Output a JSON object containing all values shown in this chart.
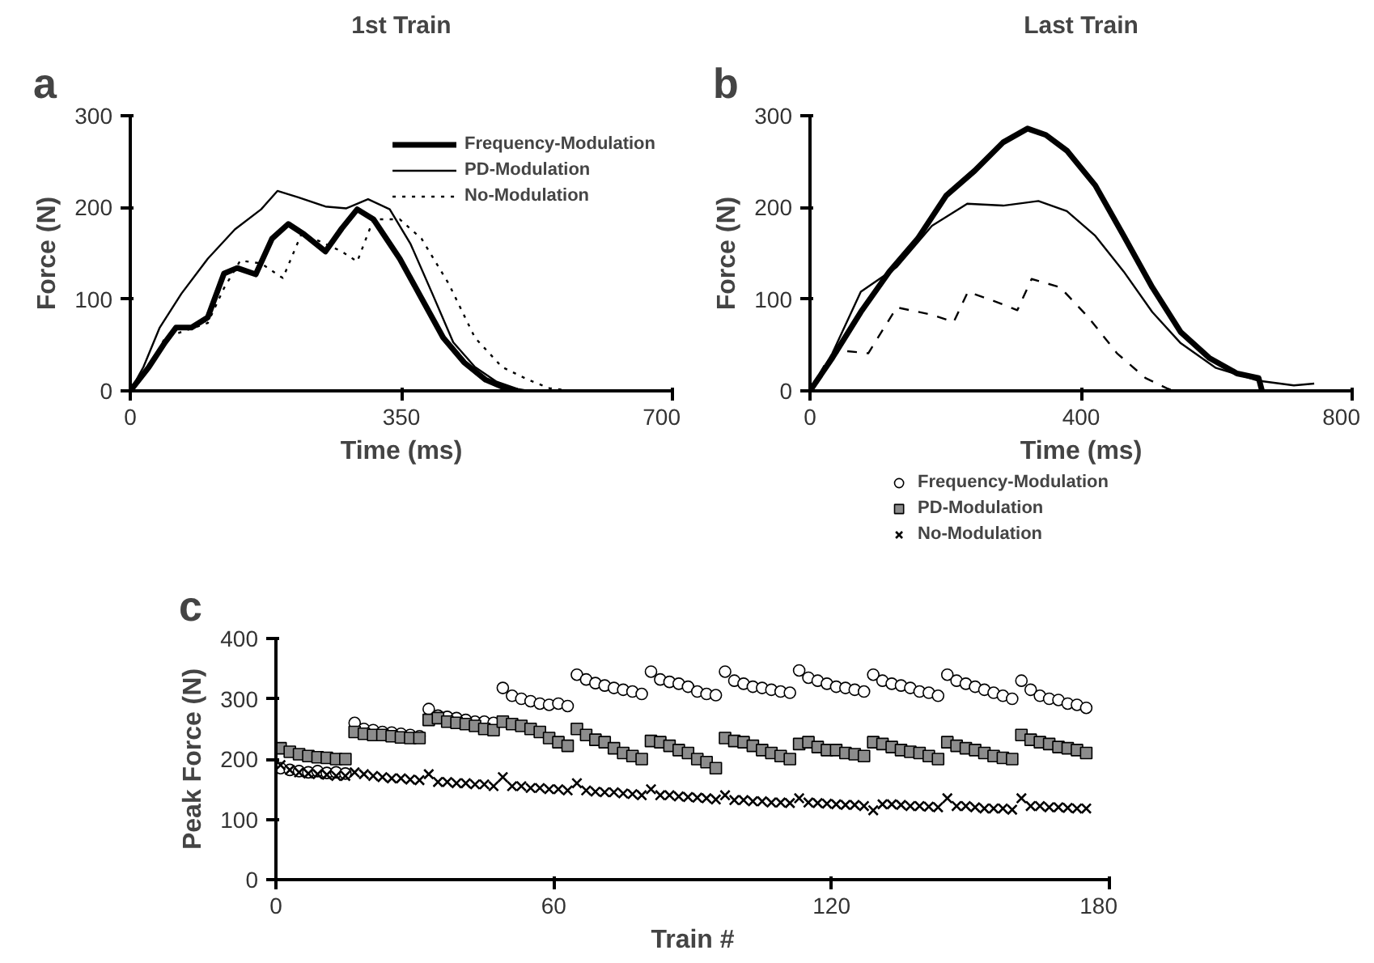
{
  "chart_data": [
    {
      "type": "line",
      "title": "1st Train",
      "xlabel": "Time (ms)",
      "ylabel": "Force (N)",
      "annotations": [
        "a"
      ],
      "xlim": [
        0,
        700
      ],
      "ylim": [
        0,
        300
      ],
      "xticks": [
        0,
        350,
        700
      ],
      "yticks": [
        0,
        100,
        200,
        300
      ],
      "grid": false,
      "legend": "top right",
      "series": [
        {
          "name": "Frequency-Modulation",
          "color": "#000000",
          "line_style": "solid",
          "x": [
            0,
            24,
            45,
            59,
            79,
            100,
            121,
            138,
            162,
            183,
            204,
            224,
            252,
            273,
            293,
            314,
            348,
            376,
            404,
            431,
            459,
            487,
            500
          ],
          "values": [
            0,
            26,
            53,
            69,
            69,
            80,
            128,
            134,
            127,
            166,
            182,
            171,
            152,
            177,
            198,
            187,
            144,
            101,
            58,
            31,
            12,
            2,
            0
          ]
        },
        {
          "name": "PD-Modulation",
          "color": "#000000",
          "line_style": "solid",
          "x": [
            0,
            17,
            38,
            66,
            100,
            135,
            169,
            190,
            217,
            252,
            279,
            307,
            335,
            362,
            390,
            417,
            445,
            473,
            500,
            514
          ],
          "values": [
            0,
            26,
            69,
            106,
            144,
            176,
            198,
            218,
            211,
            201,
            199,
            209,
            198,
            160,
            106,
            53,
            26,
            10,
            2,
            0
          ]
        },
        {
          "name": "No-Modulation",
          "color": "#000000",
          "line_style": "dotted",
          "x": [
            0,
            24,
            45,
            72,
            100,
            121,
            142,
            169,
            197,
            221,
            245,
            273,
            293,
            314,
            348,
            376,
            411,
            445,
            480,
            514,
            541,
            569
          ],
          "values": [
            0,
            26,
            58,
            66,
            74,
            112,
            142,
            139,
            123,
            171,
            163,
            152,
            141,
            187,
            187,
            166,
            117,
            58,
            26,
            12,
            3,
            0
          ]
        }
      ]
    },
    {
      "type": "line",
      "title": "Last Train",
      "xlabel": "Time (ms)",
      "ylabel": "Force (N)",
      "annotations": [
        "b"
      ],
      "xlim": [
        0,
        800
      ],
      "ylim": [
        0,
        300
      ],
      "xticks": [
        0,
        400,
        800
      ],
      "yticks": [
        0,
        100,
        200,
        300
      ],
      "grid": false,
      "series": [
        {
          "color": "#000000",
          "line_style": "solid",
          "x": [
            0,
            33,
            75,
            117,
            159,
            201,
            243,
            285,
            321,
            348,
            379,
            421,
            463,
            505,
            547,
            589,
            630,
            662,
            667
          ],
          "values": [
            0,
            36,
            86,
            130,
            166,
            213,
            240,
            271,
            286,
            279,
            262,
            224,
            169,
            113,
            64,
            36,
            19,
            14,
            0
          ]
        },
        {
          "color": "#000000",
          "line_style": "solid",
          "x": [
            0,
            33,
            75,
            128,
            180,
            232,
            285,
            337,
            379,
            421,
            463,
            505,
            547,
            599,
            662,
            714,
            744
          ],
          "values": [
            0,
            41,
            108,
            135,
            180,
            204,
            202,
            207,
            196,
            169,
            130,
            86,
            52,
            25,
            11,
            6,
            8
          ]
        },
        {
          "color": "#000000",
          "line_style": "dashed",
          "x": [
            0,
            23,
            44,
            86,
            128,
            180,
            212,
            233,
            275,
            306,
            327,
            369,
            411,
            453,
            495,
            526,
            537
          ],
          "values": [
            0,
            30,
            44,
            41,
            91,
            83,
            75,
            108,
            97,
            88,
            122,
            113,
            80,
            41,
            14,
            3,
            0
          ]
        }
      ]
    },
    {
      "type": "scatter",
      "xlabel": "Train #",
      "ylabel": "Peak Force (N)",
      "annotations": [
        "c"
      ],
      "xlim": [
        0,
        180
      ],
      "ylim": [
        0,
        400
      ],
      "xticks": [
        0,
        60,
        120,
        180
      ],
      "yticks": [
        0,
        100,
        200,
        300,
        400
      ],
      "grid": false,
      "legend": "top right",
      "x": [
        1,
        3,
        5,
        7,
        9,
        11,
        13,
        15,
        17,
        19,
        21,
        23,
        25,
        27,
        29,
        31,
        33,
        35,
        37,
        39,
        41,
        43,
        45,
        47,
        49,
        51,
        53,
        55,
        57,
        59,
        61,
        63,
        65,
        67,
        69,
        71,
        73,
        75,
        77,
        79,
        81,
        83,
        85,
        87,
        89,
        91,
        93,
        95,
        97,
        99,
        101,
        103,
        105,
        107,
        109,
        111,
        113,
        115,
        117,
        119,
        121,
        123,
        125,
        127,
        129,
        131,
        133,
        135,
        137,
        139,
        141,
        143,
        145,
        147,
        149,
        151,
        153,
        155,
        157,
        159,
        161,
        163,
        165,
        167,
        169,
        171,
        173,
        175
      ],
      "series": [
        {
          "name": "Frequency-Modulation",
          "color": "#ffffff",
          "marker": "circle",
          "values": [
            185,
            182,
            180,
            178,
            180,
            177,
            178,
            176,
            260,
            250,
            248,
            245,
            244,
            242,
            240,
            238,
            283,
            272,
            270,
            268,
            265,
            262,
            262,
            260,
            318,
            305,
            300,
            296,
            292,
            290,
            292,
            288,
            340,
            332,
            326,
            322,
            318,
            315,
            312,
            308,
            345,
            332,
            328,
            325,
            320,
            312,
            308,
            306,
            345,
            330,
            325,
            320,
            318,
            315,
            312,
            310,
            347,
            335,
            330,
            325,
            320,
            318,
            315,
            312,
            340,
            330,
            325,
            322,
            318,
            312,
            310,
            305,
            340,
            330,
            325,
            320,
            315,
            310,
            305,
            300,
            330,
            315,
            305,
            300,
            298,
            292,
            290,
            285
          ]
        },
        {
          "name": "PD-Modulation",
          "color": "#8c8c8c",
          "marker": "square",
          "values": [
            218,
            212,
            208,
            205,
            203,
            202,
            200,
            200,
            245,
            242,
            240,
            240,
            238,
            236,
            235,
            235,
            265,
            268,
            262,
            260,
            258,
            255,
            250,
            248,
            262,
            258,
            255,
            250,
            245,
            235,
            228,
            222,
            250,
            240,
            232,
            228,
            218,
            210,
            205,
            200,
            230,
            228,
            222,
            215,
            210,
            200,
            195,
            185,
            235,
            230,
            228,
            222,
            215,
            210,
            205,
            200,
            225,
            228,
            220,
            215,
            215,
            210,
            208,
            205,
            228,
            225,
            220,
            215,
            212,
            210,
            205,
            200,
            228,
            222,
            218,
            215,
            210,
            205,
            202,
            200,
            240,
            232,
            228,
            225,
            220,
            218,
            215,
            210
          ]
        },
        {
          "name": "No-Modulation",
          "color": "#000000",
          "marker": "cross",
          "values": [
            190,
            182,
            178,
            176,
            175,
            174,
            172,
            172,
            178,
            175,
            172,
            170,
            168,
            168,
            166,
            165,
            175,
            162,
            162,
            160,
            160,
            158,
            158,
            155,
            170,
            155,
            155,
            152,
            152,
            150,
            150,
            148,
            160,
            148,
            146,
            145,
            145,
            143,
            142,
            140,
            150,
            140,
            140,
            138,
            137,
            136,
            135,
            133,
            140,
            132,
            132,
            130,
            130,
            128,
            128,
            127,
            135,
            128,
            127,
            126,
            125,
            124,
            124,
            122,
            115,
            125,
            125,
            124,
            122,
            122,
            121,
            120,
            135,
            122,
            122,
            120,
            118,
            118,
            118,
            116,
            135,
            122,
            122,
            120,
            120,
            119,
            118,
            118
          ]
        }
      ]
    }
  ]
}
